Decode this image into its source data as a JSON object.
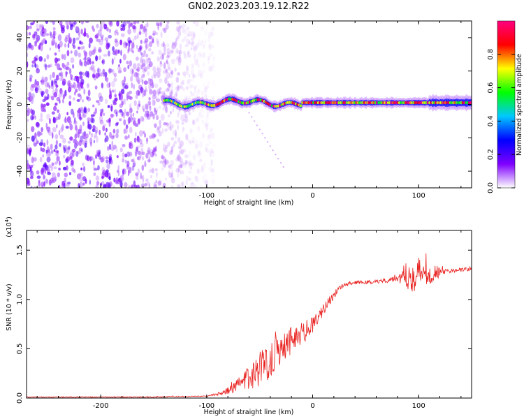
{
  "title": "GN02.2023.203.19.12.R22",
  "chart_data": [
    {
      "type": "heatmap",
      "xlabel": "Height of straight line (km)",
      "ylabel": "Frequency (Hz)",
      "xlim": [
        -270,
        150
      ],
      "ylim": [
        -50,
        50
      ],
      "xticks": [
        -200,
        -100,
        0,
        100
      ],
      "yticks": [
        -40,
        -20,
        0,
        20,
        40
      ],
      "colorbar": {
        "label": "Normalized spectral amplitude",
        "range": [
          0,
          1
        ],
        "ticks": [
          "0.0",
          "0.2",
          "0.4",
          "0.6",
          "0.8"
        ],
        "colors": [
          "#ffffff",
          "#7f00ff",
          "#0000ff",
          "#00c8ff",
          "#00ff00",
          "#ffff00",
          "#ff0000",
          "#ff0080"
        ]
      },
      "features": [
        {
          "name": "broadband noise",
          "x_range": [
            -270,
            -93
          ],
          "y_range": [
            -50,
            50
          ],
          "level": 0.15
        },
        {
          "name": "signal line",
          "x_range": [
            -140,
            150
          ],
          "y_center": 1,
          "level": 0.9
        }
      ]
    },
    {
      "type": "line",
      "xlabel": "Height of straight line (km)",
      "ylabel": "SNR (10 * v/v)",
      "yscale_label": "(x10",
      "yscale_exp": "4",
      "yscale_close": ")",
      "xlim": [
        -270,
        150
      ],
      "ylim": [
        0,
        1.7
      ],
      "xticks": [
        -200,
        -100,
        0,
        100
      ],
      "yticks": [
        "0.0",
        "0.5",
        "1.0",
        "1.5"
      ],
      "ytick_values": [
        0,
        0.5,
        1.0,
        1.5
      ],
      "color": "#e8201e",
      "series": [
        {
          "x": [
            -270,
            -150,
            -100,
            -85,
            -75,
            -60,
            -50,
            -40,
            -30,
            -20,
            -10,
            0,
            10,
            20,
            30,
            40,
            60,
            80,
            90,
            100,
            110,
            130,
            150
          ],
          "y": [
            0.01,
            0.01,
            0.02,
            0.05,
            0.1,
            0.2,
            0.3,
            0.4,
            0.52,
            0.6,
            0.67,
            0.72,
            0.9,
            1.05,
            1.15,
            1.17,
            1.18,
            1.22,
            1.25,
            1.25,
            1.27,
            1.29,
            1.31
          ],
          "noise": [
            0.005,
            0.005,
            0.005,
            0.02,
            0.05,
            0.12,
            0.18,
            0.2,
            0.18,
            0.15,
            0.12,
            0.1,
            0.06,
            0.04,
            0.02,
            0.02,
            0.02,
            0.04,
            0.15,
            0.2,
            0.12,
            0.02,
            0.02
          ]
        }
      ]
    }
  ]
}
